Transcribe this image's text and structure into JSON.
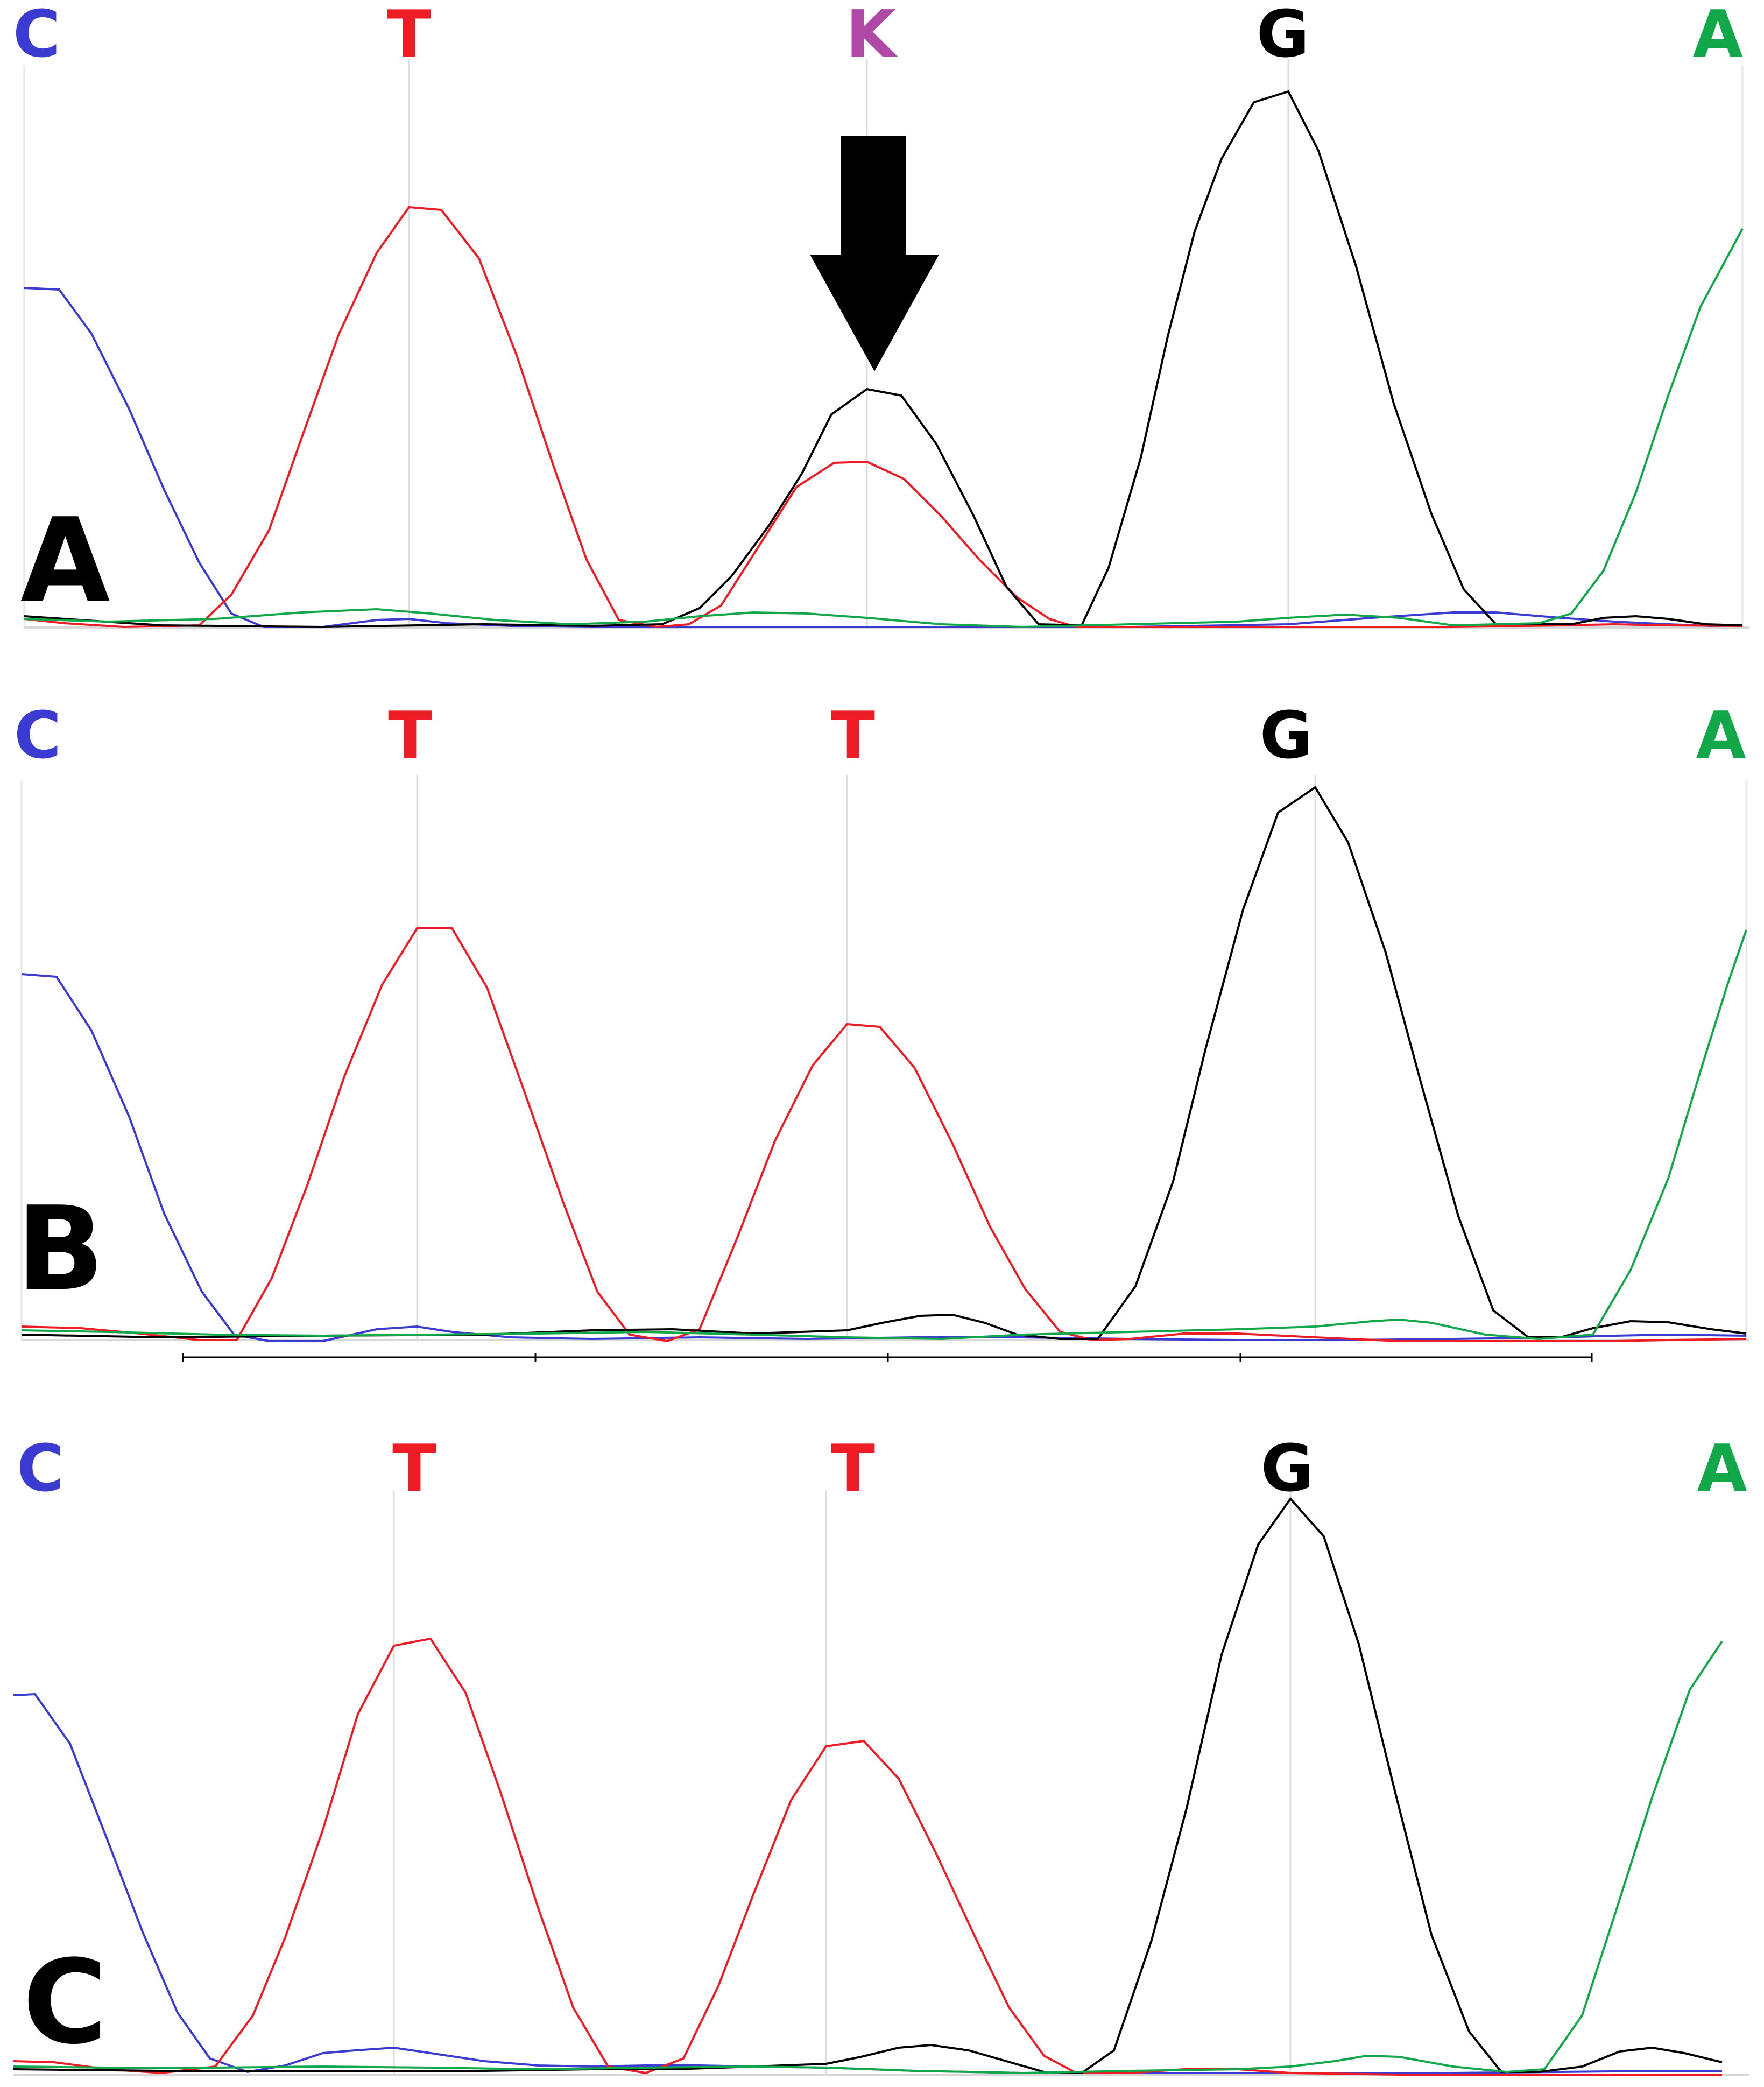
{
  "figure": {
    "panels": [
      {
        "id": "A",
        "label": "A",
        "bases": [
          {
            "letter": "C",
            "color": "#3b3bd2"
          },
          {
            "letter": "T",
            "color": "#ee1c25"
          },
          {
            "letter": "K",
            "color": "#b048a8"
          },
          {
            "letter": "G",
            "color": "#000000"
          },
          {
            "letter": "A",
            "color": "#12a84a"
          }
        ],
        "has_arrow": true,
        "arrow_target_base": "K"
      },
      {
        "id": "B",
        "label": "B",
        "bases": [
          {
            "letter": "C",
            "color": "#3b3bd2"
          },
          {
            "letter": "T",
            "color": "#ee1c25"
          },
          {
            "letter": "T",
            "color": "#ee1c25"
          },
          {
            "letter": "G",
            "color": "#000000"
          },
          {
            "letter": "A",
            "color": "#12a84a"
          }
        ],
        "has_arrow": false
      },
      {
        "id": "C",
        "label": "C",
        "bases": [
          {
            "letter": "C",
            "color": "#3b3bd2"
          },
          {
            "letter": "T",
            "color": "#ee1c25"
          },
          {
            "letter": "T",
            "color": "#ee1c25"
          },
          {
            "letter": "G",
            "color": "#000000"
          },
          {
            "letter": "A",
            "color": "#12a84a"
          }
        ],
        "has_arrow": false
      }
    ],
    "trace_colors": {
      "C": "#3b3bd2",
      "T": "#ee1c25",
      "G": "#000000",
      "A": "#12a84a"
    }
  }
}
